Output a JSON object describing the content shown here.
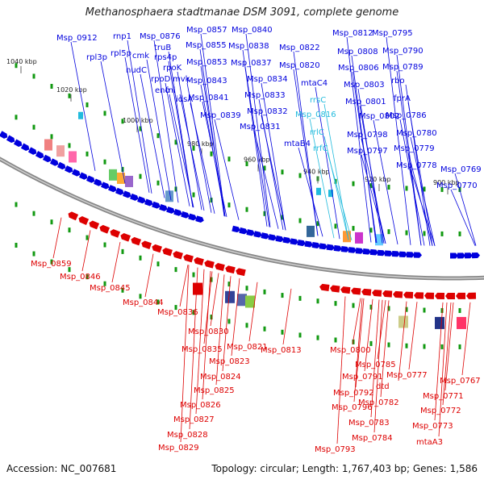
{
  "title": "Methanosphaera stadtmanae DSM 3091, complete genome",
  "footer": {
    "accession": "Accession: NC_007681",
    "summary": "Topology: circular; Length: 1,767,403 bp; Genes: 1,586"
  },
  "colors": {
    "forward": "#0000dd",
    "reverse": "#dd0000",
    "rna": "#22bbdd",
    "backbone": "#888888",
    "tick": "#119911"
  },
  "kbp_ticks": [
    "1040 kbp",
    "1020 kbp",
    "1000 kbp",
    "980 kbp",
    "960 kbp",
    "940 kbp",
    "920 kbp",
    "900 kbp"
  ],
  "forward_labels": [
    "Msp_0912",
    "rnp1",
    "rpl3p",
    "rpl5p",
    "cmk",
    "nudC",
    "Msp_0876",
    "truB",
    "rps4p",
    "rpoK",
    "rpoD",
    "eno",
    "fni",
    "idsA",
    "mvk",
    "Msp_0857",
    "Msp_0855",
    "Msp_0853",
    "Msp_0843",
    "Msp_0841",
    "Msp_0839",
    "Msp_0840",
    "Msp_0838",
    "Msp_0837",
    "Msp_0834",
    "Msp_0833",
    "Msp_0832",
    "Msp_0831",
    "Msp_0822",
    "Msp_0820",
    "mtaC4",
    "rrsC",
    "Msp_0816",
    "rrlC",
    "rrfC",
    "mtaB4",
    "Msp_0812",
    "Msp_0808",
    "Msp_0806",
    "Msp_0803",
    "Msp_0801",
    "Msp_0802",
    "Msp_0798",
    "Msp_0797",
    "Msp_0795",
    "Msp_0790",
    "Msp_0789",
    "rbo",
    "fprA",
    "Msp_0786",
    "Msp_0780",
    "Msp_0779",
    "Msp_0778",
    "Msp_0769",
    "Msp_0770"
  ],
  "reverse_labels": [
    "Msp_0859",
    "Msp_0846",
    "Msp_0845",
    "Msp_0844",
    "Msp_0836",
    "Msp_0830",
    "Msp_0835",
    "Msp_0821",
    "Msp_0823",
    "Msp_0824",
    "Msp_0825",
    "Msp_0826",
    "Msp_0827",
    "Msp_0828",
    "Msp_0829",
    "Msp_0813",
    "Msp_0800",
    "Msp_0791",
    "Msp_0792",
    "Msp_0796",
    "Msp_0793",
    "Msp_0785",
    "dtd",
    "Msp_0782",
    "Msp_0783",
    "Msp_0784",
    "Msp_0777",
    "Msp_0771",
    "Msp_0772",
    "Msp_0773",
    "mtaA3",
    "Msp_0767"
  ]
}
